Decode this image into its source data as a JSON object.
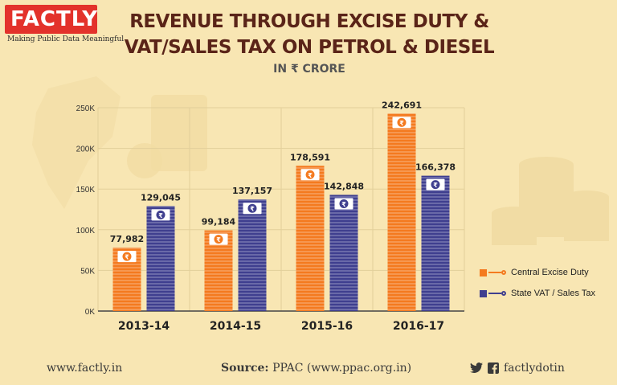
{
  "brand": {
    "logo_text": "FACTLY",
    "tagline": "Making Public Data Meaningful"
  },
  "header": {
    "title_line1": "REVENUE THROUGH EXCISE DUTY &",
    "title_line2": "VAT/SALES TAX ON PETROL & DIESEL",
    "subtitle": "IN ₹ CRORE"
  },
  "chart_data": {
    "type": "bar",
    "title": "Revenue through Excise Duty & VAT/Sales Tax on Petrol & Diesel",
    "unit": "IN ₹ CRORE",
    "categories": [
      "2013-14",
      "2014-15",
      "2015-16",
      "2016-17"
    ],
    "series": [
      {
        "name": "Central Excise Duty",
        "color": "#f47a1f",
        "values": [
          77982,
          99184,
          178591,
          242691
        ],
        "labels": [
          "77,982",
          "99,184",
          "178,591",
          "242,691"
        ]
      },
      {
        "name": "State VAT / Sales Tax",
        "color": "#3f3f8f",
        "values": [
          129045,
          137157,
          142848,
          166378
        ],
        "labels": [
          "129,045",
          "137,157",
          "142,848",
          "166,378"
        ]
      }
    ],
    "ylim": [
      0,
      250000
    ],
    "yticks": [
      0,
      50000,
      100000,
      150000,
      200000,
      250000
    ],
    "ytick_labels": [
      "0K",
      "50K",
      "100K",
      "150K",
      "200K",
      "250K"
    ],
    "legend_position": "right",
    "icon_symbol": "₹"
  },
  "footer": {
    "website": "www.factly.in",
    "source_label": "Source:",
    "source_text": "PPAC (www.ppac.org.in)",
    "handle": "factlydotin"
  },
  "colors": {
    "background": "#f8e6b3",
    "brand_red": "#e3322b",
    "title": "#5a2418"
  }
}
